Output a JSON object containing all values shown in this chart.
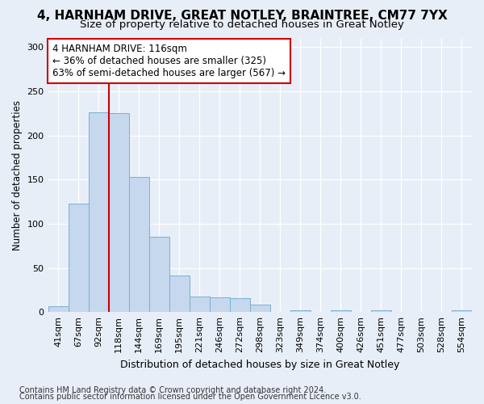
{
  "title1": "4, HARNHAM DRIVE, GREAT NOTLEY, BRAINTREE, CM77 7YX",
  "title2": "Size of property relative to detached houses in Great Notley",
  "xlabel": "Distribution of detached houses by size in Great Notley",
  "ylabel": "Number of detached properties",
  "bar_labels": [
    "41sqm",
    "67sqm",
    "92sqm",
    "118sqm",
    "144sqm",
    "169sqm",
    "195sqm",
    "221sqm",
    "246sqm",
    "272sqm",
    "298sqm",
    "323sqm",
    "349sqm",
    "374sqm",
    "400sqm",
    "426sqm",
    "451sqm",
    "477sqm",
    "503sqm",
    "528sqm",
    "554sqm"
  ],
  "bar_values": [
    7,
    123,
    226,
    225,
    153,
    85,
    41,
    18,
    17,
    16,
    8,
    0,
    2,
    0,
    2,
    0,
    2,
    0,
    0,
    0,
    2
  ],
  "bar_color": "#c5d8ee",
  "bar_edgecolor": "#7aafd4",
  "vline_x": 3,
  "vline_color": "#cc0000",
  "annotation_text": "4 HARNHAM DRIVE: 116sqm\n← 36% of detached houses are smaller (325)\n63% of semi-detached houses are larger (567) →",
  "annotation_box_color": "#ffffff",
  "annotation_box_edgecolor": "#cc0000",
  "ylim": [
    0,
    310
  ],
  "yticks": [
    0,
    50,
    100,
    150,
    200,
    250,
    300
  ],
  "footer1": "Contains HM Land Registry data © Crown copyright and database right 2024.",
  "footer2": "Contains public sector information licensed under the Open Government Licence v3.0.",
  "bg_color": "#e8eef8",
  "plot_bg_color": "#e8eef8",
  "title1_fontsize": 11,
  "title2_fontsize": 9.5,
  "xlabel_fontsize": 9,
  "ylabel_fontsize": 8.5,
  "tick_fontsize": 8,
  "annotation_fontsize": 8.5,
  "footer_fontsize": 7
}
